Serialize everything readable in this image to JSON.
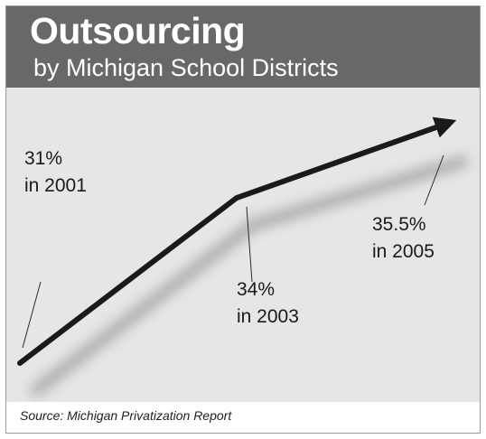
{
  "header": {
    "title": "Outsourcing",
    "subtitle": "by Michigan School Districts"
  },
  "source": "Source: Michigan Privatization Report",
  "chart_data": {
    "type": "line",
    "title": "Outsourcing",
    "subtitle": "by Michigan School Districts",
    "x": [
      2001,
      2003,
      2005
    ],
    "series": [
      {
        "values": [
          31,
          34,
          35.5
        ]
      }
    ],
    "data_labels": [
      {
        "value": "31%",
        "year": "in 2001"
      },
      {
        "value": "34%",
        "year": "in 2003"
      },
      {
        "value": "35.5%",
        "year": "in 2005"
      }
    ],
    "grid": false,
    "colors": {
      "line": "#1a1a1a",
      "shadow": "#9a9a9a",
      "header": "#686868",
      "background": "#e6e6e6"
    }
  }
}
